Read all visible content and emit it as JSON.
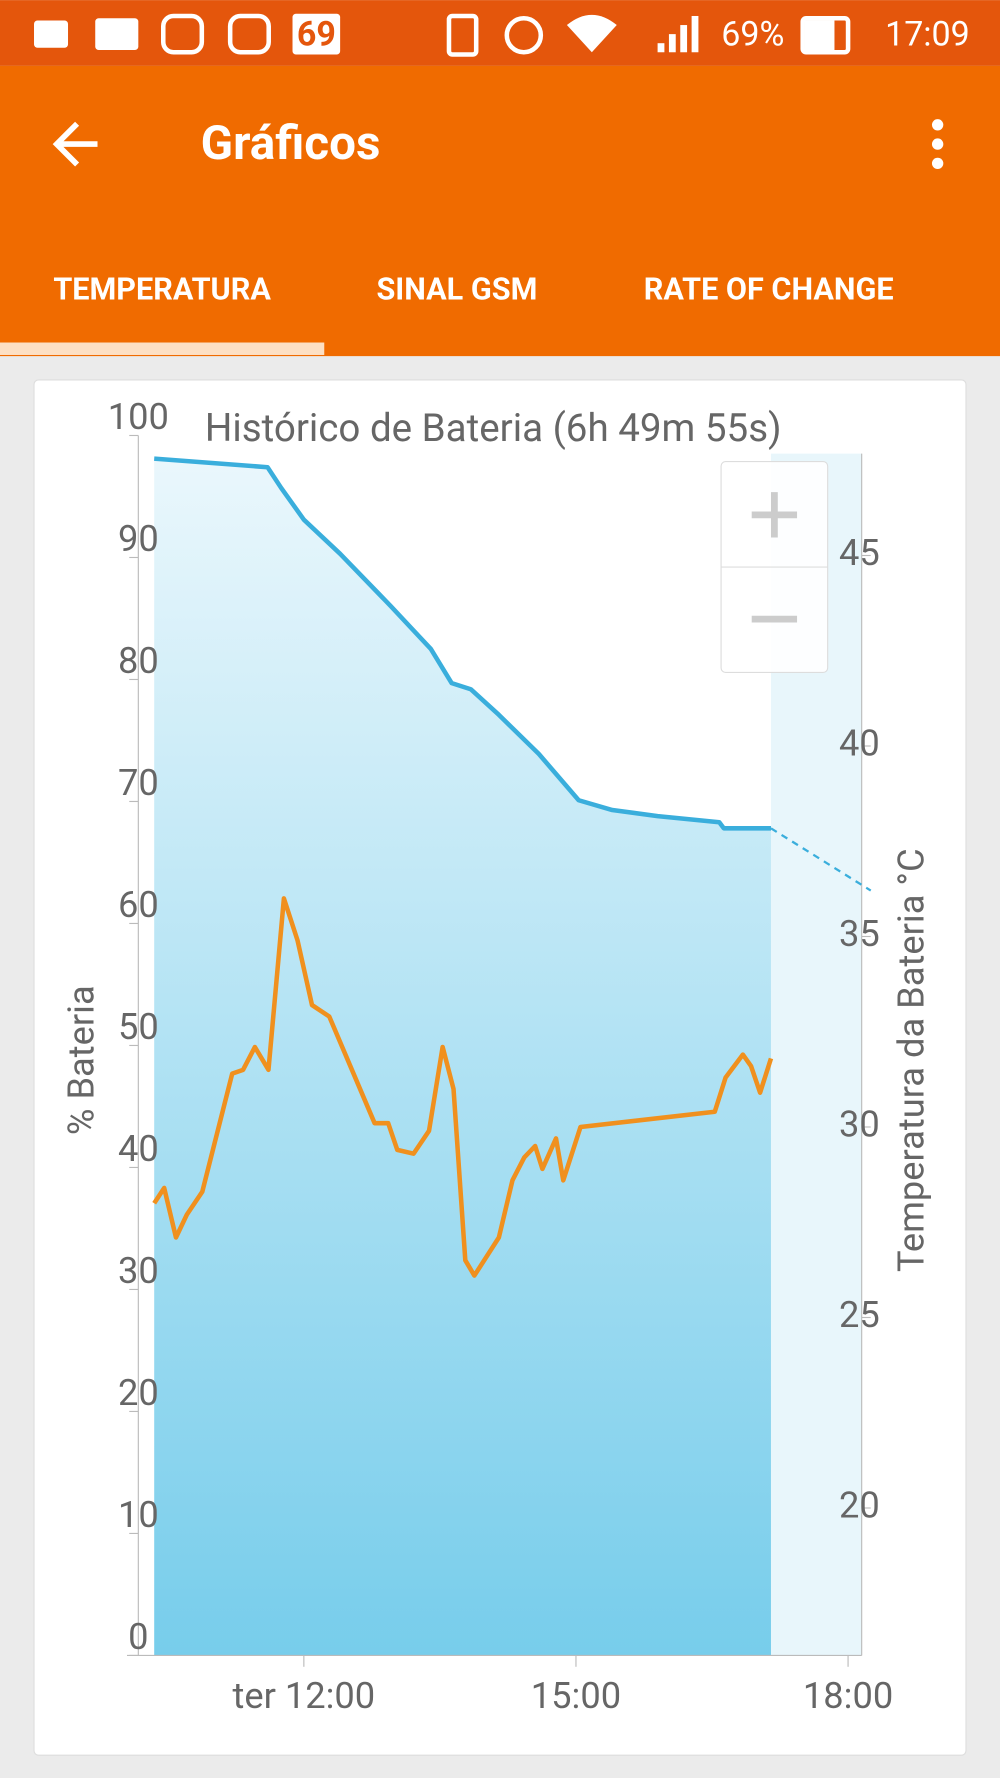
{
  "status_bar": {
    "badge": "69",
    "battery": "69%",
    "time": "17:09"
  },
  "app_bar": {
    "title": "Gráficos"
  },
  "tabs": [
    "TEMPERATURA",
    "SINAL GSM",
    "RATE OF CHANGE"
  ],
  "chart_data": {
    "type": "line",
    "title": "Histórico de Bateria (6h 49m 55s)",
    "y_label": "% Bateria",
    "y2_label": "Temperatura da Bateria °C",
    "xlim": [
      10.175,
      18.15
    ],
    "xticks": [
      {
        "value": 12,
        "label": "ter 12:00"
      },
      {
        "value": 15,
        "label": "15:00"
      },
      {
        "value": 18,
        "label": "18:00"
      }
    ],
    "ylim": [
      0,
      100
    ],
    "yticks": [
      0,
      10,
      20,
      30,
      40,
      50,
      60,
      70,
      80,
      90,
      100
    ],
    "y2lim": [
      16.13,
      48.15
    ],
    "y2ticks": [
      20,
      25,
      30,
      35,
      40,
      45
    ],
    "series": [
      {
        "color": "#3aaedc",
        "fill": true,
        "x": [
          10.35,
          11.6,
          11.75,
          12,
          12.4,
          12.96,
          13.4,
          13.63,
          13.84,
          14.15,
          14.59,
          15.03,
          15.4,
          15.9,
          16.58,
          16.63,
          17.15
        ],
        "values": [
          98.1,
          97.4,
          95.7,
          93.1,
          90.3,
          86,
          82.5,
          79.7,
          79.2,
          77.1,
          73.9,
          70.1,
          69.3,
          68.8,
          68.3,
          67.8,
          67.8
        ]
      },
      {
        "color": "#3aaedc",
        "dashed": true,
        "x": [
          17.15,
          18.25
        ],
        "values": [
          67.8,
          62.7
        ]
      },
      {
        "color": "#f0901e",
        "axis": "y2",
        "x": [
          10.35,
          10.46,
          10.59,
          10.71,
          10.88,
          11.21,
          11.33,
          11.46,
          11.61,
          11.78,
          11.93,
          12.09,
          12.28,
          12.78,
          12.93,
          13.03,
          13.21,
          13.38,
          13.53,
          13.65,
          13.78,
          13.88,
          14.15,
          14.3,
          14.43,
          14.55,
          14.63,
          14.78,
          14.86,
          15.05,
          16.53,
          16.65,
          16.84,
          16.93,
          17.03,
          17.15
        ],
        "values": [
          28.0,
          28.4,
          27.1,
          27.7,
          28.3,
          31.4,
          31.5,
          32.1,
          31.5,
          36.0,
          34.9,
          33.2,
          32.9,
          30.1,
          30.1,
          29.4,
          29.3,
          29.9,
          32.1,
          31.0,
          26.5,
          26.1,
          27.1,
          28.6,
          29.2,
          29.5,
          28.9,
          29.7,
          28.6,
          30.0,
          30.4,
          31.3,
          31.9,
          31.6,
          30.9,
          31.8
        ]
      }
    ]
  }
}
